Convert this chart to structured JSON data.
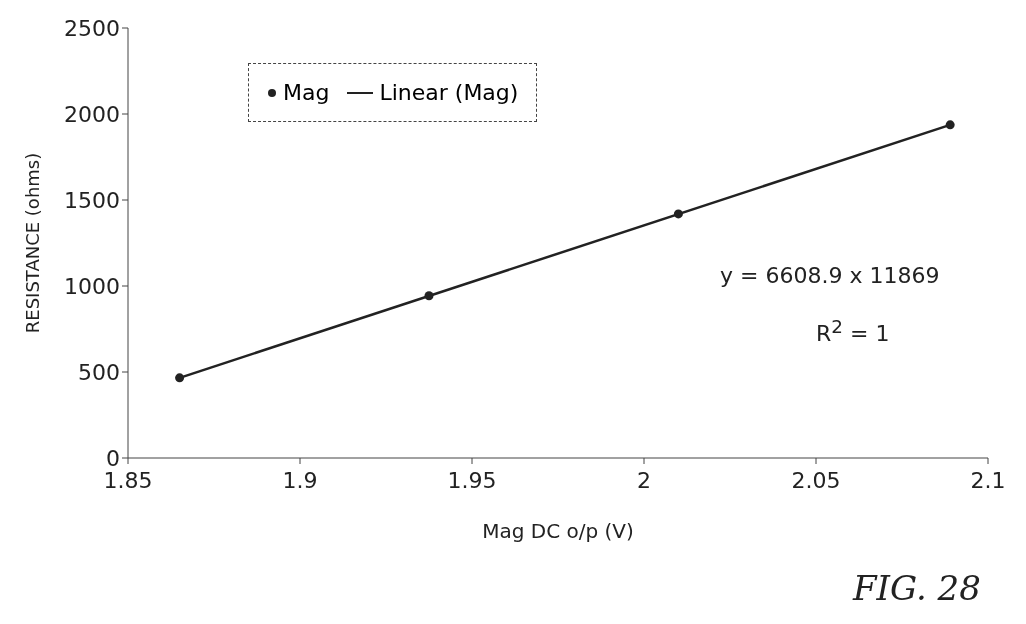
{
  "chart_data": {
    "type": "scatter",
    "xlabel": "Mag DC o/p (V)",
    "ylabel": "RESISTANCE (ohms)",
    "xlim": [
      1.85,
      2.1
    ],
    "xticks": [
      1.85,
      1.9,
      1.95,
      2,
      2.05,
      2.1
    ],
    "ylim": [
      0,
      2500
    ],
    "yticks": [
      0,
      500,
      1000,
      1500,
      2000,
      2500
    ],
    "series": [
      {
        "name": "Mag",
        "color": "#222222",
        "marker": "circle",
        "x": [
          1.865,
          1.9375,
          2.01,
          2.089
        ],
        "values": [
          466,
          943,
          1419,
          1937
        ]
      },
      {
        "name": "Linear (Mag)",
        "type": "line",
        "color": "#222222",
        "line_style": "solid",
        "marker": "none",
        "x": [
          1.865,
          2.089
        ],
        "values": [
          466,
          1937
        ]
      }
    ],
    "annotations": [
      "y = 6608.9 x 11869",
      "R$^{2}$ = 1",
      "FIG. 28"
    ],
    "grid": false,
    "legend": "top left"
  }
}
